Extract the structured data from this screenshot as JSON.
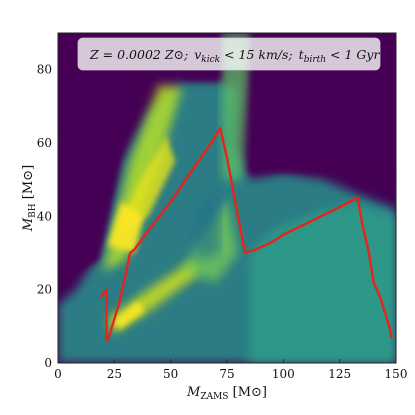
{
  "chart_data": {
    "type": "heatmap",
    "title": "",
    "annotation": "Z = 0.0002 Z⊙; v_kick < 15 km/s; t_birth < 1 Gyr",
    "annotation_parts": {
      "z": "Z = 0.0002 Z⊙;",
      "vkick": "v",
      "vkick_sub": "kick",
      "vkick_rest": " < 15 km/s;",
      "tbirth": "t",
      "tbirth_sub": "birth",
      "tbirth_rest": " < 1 Gyr"
    },
    "xlabel": "M",
    "xlabel_sub": "ZAMS",
    "xlabel_unit": " [M⊙]",
    "ylabel": "M",
    "ylabel_sub": "BH",
    "ylabel_unit": " [M⊙]",
    "xlim": [
      0,
      150
    ],
    "ylim": [
      0,
      90
    ],
    "x_ticks": [
      0,
      25,
      50,
      75,
      100,
      125,
      150
    ],
    "y_ticks": [
      0,
      20,
      40,
      60,
      80
    ],
    "x_tick_labels": [
      "0",
      "25",
      "50",
      "75",
      "100",
      "125",
      "150"
    ],
    "y_tick_labels": [
      "0",
      "20",
      "40",
      "60",
      "80"
    ],
    "colormap": "viridis",
    "background_color": "#440154",
    "line_color": "#e8231a",
    "series": [
      {
        "type": "line",
        "x": [
          19,
          21.5,
          21.5,
          22.5,
          24,
          27,
          30,
          32,
          34,
          40,
          50,
          60,
          68,
          72,
          75,
          78,
          83,
          88,
          95,
          100,
          110,
          120,
          128,
          133,
          135,
          138,
          140,
          143,
          147,
          148
        ],
        "y": [
          18,
          20,
          6,
          7,
          10,
          16,
          24,
          30,
          31,
          36,
          44,
          53,
          60,
          64,
          56,
          46,
          30,
          31,
          33,
          35,
          38,
          41,
          43.5,
          45,
          38,
          30,
          22,
          18,
          10,
          7
        ]
      }
    ]
  }
}
